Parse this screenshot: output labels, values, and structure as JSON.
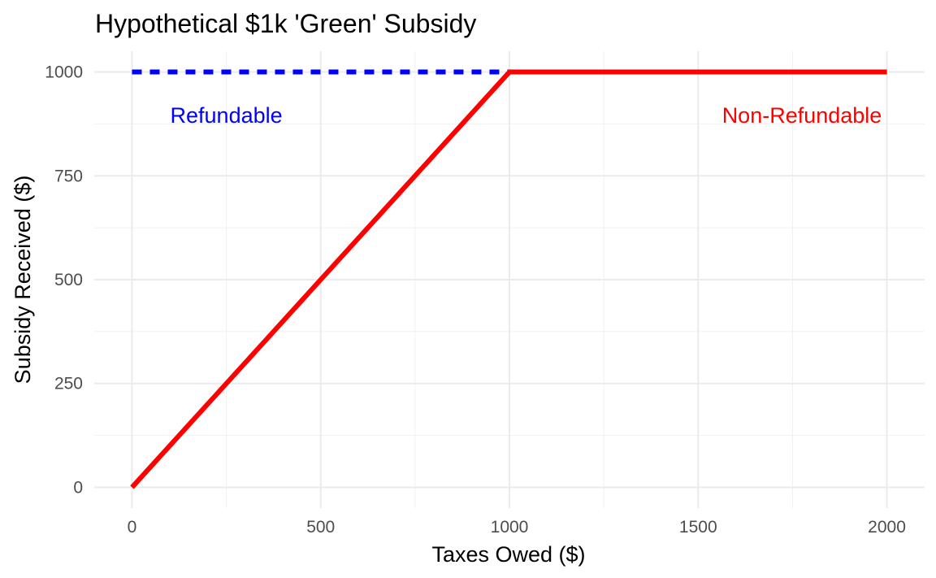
{
  "chart_data": {
    "type": "line",
    "title": "Hypothetical $1k 'Green' Subsidy",
    "xlabel": "Taxes Owed ($)",
    "ylabel": "Subsidy Received ($)",
    "xlim": [
      -100,
      2100
    ],
    "ylim": [
      -50,
      1050
    ],
    "x_ticks": [
      0,
      500,
      1000,
      1500,
      2000
    ],
    "x_tick_labels": [
      "0",
      "500",
      "1000",
      "1500",
      "2000"
    ],
    "y_ticks": [
      0,
      250,
      500,
      750,
      1000
    ],
    "y_tick_labels": [
      "0",
      "250",
      "500",
      "750",
      "1000"
    ],
    "x_minor": [
      250,
      750,
      1250,
      1750
    ],
    "y_minor": [
      125,
      375,
      625,
      875
    ],
    "grid": true,
    "legend": "none",
    "series": [
      {
        "color": "#0000ff",
        "style": "dashed",
        "x": [
          0,
          2000
        ],
        "y": [
          1000,
          1000
        ]
      },
      {
        "color": "#ff0000",
        "style": "solid",
        "x": [
          0,
          1000,
          2000
        ],
        "y": [
          0,
          1000,
          1000
        ]
      }
    ],
    "annotations": [
      {
        "text": "Refundable",
        "x": 250,
        "y": 895,
        "color": "#0000ff"
      },
      {
        "text": "Non-Refundable",
        "x": 1775,
        "y": 895,
        "color": "#ff0000"
      }
    ]
  }
}
